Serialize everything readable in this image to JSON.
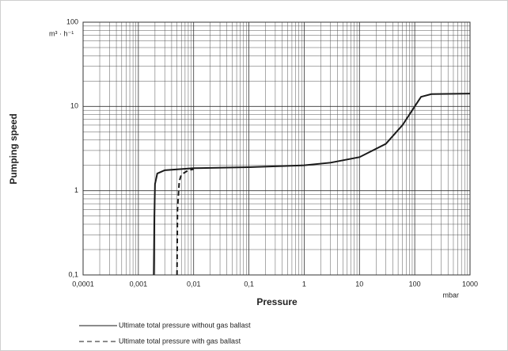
{
  "chart_data": {
    "type": "line",
    "y_axis_label": "Pumping speed",
    "y_unit": "m³ · h⁻¹",
    "x_axis_label": "Pressure",
    "x_unit": "mbar",
    "log_x": true,
    "log_y": true,
    "grid": true,
    "xlim": [
      0.0001,
      1000
    ],
    "xticks": [
      {
        "value": 0.0001,
        "label": "0,0001"
      },
      {
        "value": 0.001,
        "label": "0,001"
      },
      {
        "value": 0.01,
        "label": "0,01"
      },
      {
        "value": 0.1,
        "label": "0,1"
      },
      1,
      10,
      100,
      1000
    ],
    "ylim": [
      0.1,
      100
    ],
    "yticks": [
      {
        "value": 0.1,
        "label": "0,1"
      },
      1,
      10,
      100
    ],
    "series": [
      {
        "name": "Ultimate total pressure without gas ballast",
        "color": "#1a1a1a",
        "dashed": false,
        "x": [
          0.0019,
          0.00195,
          0.002,
          0.0022,
          0.003,
          0.01,
          0.1,
          1,
          3,
          10,
          30,
          60,
          100,
          130,
          200,
          1000
        ],
        "values": [
          0.1,
          0.5,
          1.2,
          1.6,
          1.75,
          1.85,
          1.9,
          2.0,
          2.15,
          2.5,
          3.6,
          6,
          10,
          13,
          14,
          14.2
        ]
      },
      {
        "name": "Ultimate total pressure with gas ballast",
        "color": "#1a1a1a",
        "dashed": true,
        "x": [
          0.005,
          0.0051,
          0.0055,
          0.006,
          0.008,
          0.01
        ],
        "values": [
          0.1,
          0.6,
          1.3,
          1.55,
          1.75,
          1.8
        ]
      }
    ]
  }
}
